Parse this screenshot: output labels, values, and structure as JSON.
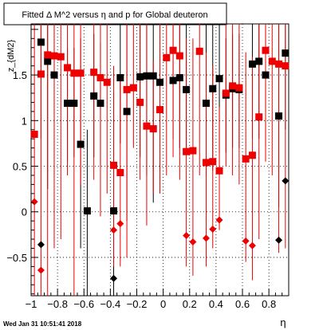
{
  "chart_data": {
    "type": "scatter",
    "title": "Fitted Δ M^2 versus η and p for Global deuteron",
    "xlabel": "η",
    "ylabel": "z_{dM2}",
    "xlim": [
      -1.0,
      0.95
    ],
    "ylim": [
      -0.92,
      2.06
    ],
    "grid": true,
    "xticks": [
      -1,
      -0.8,
      -0.6,
      -0.4,
      -0.2,
      0,
      0.2,
      0.4,
      0.6,
      0.8
    ],
    "xtick_labels": [
      "−1",
      "−0.8",
      "−0.6",
      "−0.4",
      "−0.2",
      "0",
      "0.2",
      "0.4",
      "0.6",
      "0.8"
    ],
    "yticks": [
      -0.5,
      0,
      0.5,
      1,
      1.5
    ],
    "ytick_labels": [
      "−0.5",
      "0",
      "0.5",
      "1",
      "1.5"
    ],
    "series": [
      {
        "color": "#000000",
        "marker": "square",
        "points": [
          {
            "x": -0.925,
            "y": 1.86,
            "lo": 0.8,
            "hi": 2.06
          },
          {
            "x": -0.875,
            "y": 1.65,
            "lo": 0.25,
            "hi": 2.06
          },
          {
            "x": -0.825,
            "y": 1.5,
            "lo": 0.4,
            "hi": 2.06
          },
          {
            "x": -0.725,
            "y": 1.19,
            "lo": 0.55,
            "hi": 1.8
          },
          {
            "x": -0.675,
            "y": 1.19,
            "lo": 0.6,
            "hi": 1.8
          },
          {
            "x": -0.625,
            "y": 0.74,
            "lo": -0.4,
            "hi": 1.9
          },
          {
            "x": -0.575,
            "y": 0.01,
            "lo": -0.92,
            "hi": 0.9
          },
          {
            "x": -0.525,
            "y": 1.27,
            "lo": 0.6,
            "hi": 1.95
          },
          {
            "x": -0.475,
            "y": 1.19,
            "lo": 0.5,
            "hi": 1.85
          },
          {
            "x": -0.375,
            "y": 0.01,
            "lo": -0.92,
            "hi": 1.3
          },
          {
            "x": -0.325,
            "y": 1.47,
            "lo": 0.75,
            "hi": 2.06
          },
          {
            "x": -0.275,
            "y": 1.1,
            "lo": -0.1,
            "hi": 2.06
          },
          {
            "x": -0.175,
            "y": 1.48,
            "lo": 0.6,
            "hi": 2.06
          },
          {
            "x": -0.125,
            "y": 1.49,
            "lo": 0.4,
            "hi": 2.06
          },
          {
            "x": -0.075,
            "y": 1.49,
            "lo": 0.1,
            "hi": 2.06
          },
          {
            "x": -0.025,
            "y": 1.42,
            "lo": 0.8,
            "hi": 2.06
          },
          {
            "x": 0.075,
            "y": 1.44,
            "lo": 0.8,
            "hi": 2.06
          },
          {
            "x": 0.125,
            "y": 1.47,
            "lo": 0.7,
            "hi": 2.06
          },
          {
            "x": 0.175,
            "y": 1.34,
            "lo": 0.65,
            "hi": 2.06
          },
          {
            "x": 0.325,
            "y": 1.19,
            "lo": 0.4,
            "hi": 2.06
          },
          {
            "x": 0.375,
            "y": 1.35,
            "lo": 0.45,
            "hi": 2.06
          },
          {
            "x": 0.425,
            "y": 1.46,
            "lo": 0.65,
            "hi": 2.06
          },
          {
            "x": 0.475,
            "y": 1.28,
            "lo": 0.65,
            "hi": 1.9
          },
          {
            "x": 0.525,
            "y": 1.35,
            "lo": 0.7,
            "hi": 1.95
          },
          {
            "x": 0.575,
            "y": 1.34,
            "lo": 0.7,
            "hi": 1.95
          },
          {
            "x": 0.675,
            "y": 1.62,
            "lo": 0.8,
            "hi": 2.06
          },
          {
            "x": 0.725,
            "y": 1.65,
            "lo": 0.8,
            "hi": 2.06
          },
          {
            "x": 0.775,
            "y": 1.5,
            "lo": 0.7,
            "hi": 2.06
          },
          {
            "x": 0.875,
            "y": 1.05,
            "lo": 0.05,
            "hi": 2.06
          },
          {
            "x": 0.925,
            "y": 1.74,
            "lo": 0.9,
            "hi": 2.06
          }
        ]
      },
      {
        "color": "#000000",
        "marker": "diamond",
        "points": [
          {
            "x": -0.925,
            "y": -0.36
          },
          {
            "x": -0.375,
            "y": -0.73
          },
          {
            "x": 0.875,
            "y": -0.31
          },
          {
            "x": 0.925,
            "y": 0.34
          }
        ]
      },
      {
        "color": "#ee0000",
        "marker": "square",
        "points": [
          {
            "x": -0.975,
            "y": 0.85,
            "lo": -0.92,
            "hi": 2.06
          },
          {
            "x": -0.925,
            "y": 1.51,
            "lo": -0.92,
            "hi": 2.06
          },
          {
            "x": -0.875,
            "y": 1.72,
            "lo": -0.92,
            "hi": 2.06
          },
          {
            "x": -0.825,
            "y": 1.71,
            "lo": -0.4,
            "hi": 2.06
          },
          {
            "x": -0.775,
            "y": 1.7,
            "lo": -0.3,
            "hi": 2.06
          },
          {
            "x": -0.725,
            "y": 1.58,
            "lo": 0.4,
            "hi": 2.06
          },
          {
            "x": -0.675,
            "y": 1.52,
            "lo": -0.92,
            "hi": 2.06
          },
          {
            "x": -0.625,
            "y": 1.52,
            "lo": 0.3,
            "hi": 2.06
          },
          {
            "x": -0.525,
            "y": 1.53,
            "lo": 0.35,
            "hi": 2.06
          },
          {
            "x": -0.475,
            "y": 1.47,
            "lo": -0.05,
            "hi": 2.06
          },
          {
            "x": -0.425,
            "y": 1.42,
            "lo": 0.2,
            "hi": 2.06
          },
          {
            "x": -0.375,
            "y": 0.51,
            "lo": -0.6,
            "hi": 1.6
          },
          {
            "x": -0.325,
            "y": 0.43,
            "lo": -0.6,
            "hi": 1.45
          },
          {
            "x": -0.275,
            "y": 1.34,
            "lo": -0.5,
            "hi": 2.06
          },
          {
            "x": -0.225,
            "y": 1.36,
            "lo": 0.7,
            "hi": 2.06
          },
          {
            "x": -0.175,
            "y": 1.2,
            "lo": 0.35,
            "hi": 2.06
          },
          {
            "x": -0.125,
            "y": 0.94,
            "lo": -0.15,
            "hi": 2.06
          },
          {
            "x": -0.075,
            "y": 0.91,
            "lo": 0.2,
            "hi": 1.65
          },
          {
            "x": -0.025,
            "y": 1.12,
            "lo": 0.2,
            "hi": 2.06
          },
          {
            "x": 0.025,
            "y": 1.69,
            "lo": 0.4,
            "hi": 2.06
          },
          {
            "x": 0.075,
            "y": 1.77,
            "lo": 0.6,
            "hi": 2.06
          },
          {
            "x": 0.125,
            "y": 1.71,
            "lo": 0.35,
            "hi": 2.06
          },
          {
            "x": 0.175,
            "y": 0.66,
            "lo": -0.6,
            "hi": 1.9
          },
          {
            "x": 0.225,
            "y": 0.67,
            "lo": -0.7,
            "hi": 1.9
          },
          {
            "x": 0.275,
            "y": 1.76,
            "lo": 0.4,
            "hi": 2.06
          },
          {
            "x": 0.325,
            "y": 0.54,
            "lo": -0.6,
            "hi": 1.75
          },
          {
            "x": 0.375,
            "y": 0.55,
            "lo": -0.4,
            "hi": 1.6
          },
          {
            "x": 0.425,
            "y": 0.45,
            "lo": -0.2,
            "hi": 1.15
          },
          {
            "x": 0.475,
            "y": 1.3,
            "lo": 0.5,
            "hi": 2.06
          },
          {
            "x": 0.525,
            "y": 1.38,
            "lo": 0.4,
            "hi": 2.06
          },
          {
            "x": 0.575,
            "y": 1.36,
            "lo": 0.3,
            "hi": 2.06
          },
          {
            "x": 0.625,
            "y": 0.58,
            "lo": -0.55,
            "hi": 1.75
          },
          {
            "x": 0.675,
            "y": 0.62,
            "lo": -0.75,
            "hi": 1.7
          },
          {
            "x": 0.725,
            "y": 1.04,
            "lo": -0.3,
            "hi": 2.06
          },
          {
            "x": 0.775,
            "y": 1.77,
            "lo": 0.55,
            "hi": 2.06
          },
          {
            "x": 0.825,
            "y": 1.65,
            "lo": 0.4,
            "hi": 2.06
          },
          {
            "x": 0.875,
            "y": 1.62,
            "lo": -0.45,
            "hi": 2.06
          },
          {
            "x": 0.925,
            "y": 1.6,
            "lo": -0.4,
            "hi": 2.06
          }
        ]
      },
      {
        "color": "#ee0000",
        "marker": "diamond",
        "points": [
          {
            "x": -0.975,
            "y": 0.11
          },
          {
            "x": -0.925,
            "y": -0.64
          },
          {
            "x": -0.375,
            "y": -0.2
          },
          {
            "x": -0.325,
            "y": -0.13
          },
          {
            "x": 0.175,
            "y": -0.26
          },
          {
            "x": 0.225,
            "y": -0.33
          },
          {
            "x": 0.325,
            "y": -0.29
          },
          {
            "x": 0.375,
            "y": -0.19
          },
          {
            "x": 0.425,
            "y": -0.09
          },
          {
            "x": 0.625,
            "y": -0.32
          },
          {
            "x": 0.675,
            "y": -0.37
          }
        ]
      }
    ]
  },
  "footer": {
    "timestamp": "Wed Jan 31 10:51:41 2018"
  }
}
